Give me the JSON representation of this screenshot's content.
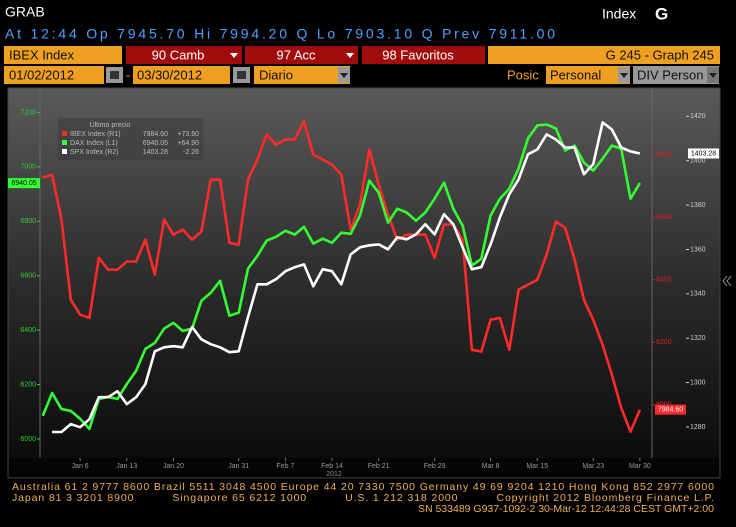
{
  "header": {
    "title": "GRAB",
    "screen": "Index",
    "screen_key": "G",
    "quote": "At 12:44 Op 7945.70   Hi 7994.20 Q Lo 7903.10 Q Prev 7911.00"
  },
  "toolbar": {
    "security": "IBEX Index",
    "buttons": [
      "90 Camb",
      "97 Acc",
      "98 Favoritos"
    ],
    "screen": "G 245 - Graph 245"
  },
  "controls": {
    "start": "01/02/2012",
    "separator": "-",
    "end": "03/30/2012",
    "period": "Diario",
    "position_label": "Posic",
    "position": "Personal",
    "currency": "DIV Person"
  },
  "footer": {
    "lines": [
      "Australia 61 2 9777 8600 Brazil 5511 3048 4500 Europe 44 20 7330 7500 Germany 49 69 9204 1210 Hong Kong 852 2977 6000",
      "Japan 81 3 3201 8900          Singapore 65 6212 1000          U.S. 1 212 318 2000          Copyright 2012 Bloomberg Finance L.P.",
      "SN 533489 G937-1092-2 30-Mar-12 12:44:28 CEST GMT+2:00"
    ]
  },
  "chart_data": {
    "type": "line",
    "legend_title": "Último precio",
    "year_label": "2012",
    "x": [
      0,
      1,
      2,
      3,
      4,
      5,
      6,
      7,
      8,
      9,
      10,
      11,
      12,
      13,
      14,
      15,
      16,
      17,
      18,
      19,
      20,
      21,
      22,
      23,
      24,
      25,
      26,
      27,
      28,
      29,
      30,
      31,
      32,
      33,
      34,
      35,
      36,
      37,
      38,
      39,
      40,
      41,
      42,
      43,
      44,
      45,
      46,
      47,
      48,
      49,
      50,
      51,
      52,
      53,
      54,
      55,
      56,
      57,
      58,
      59,
      60,
      61,
      62,
      63,
      64
    ],
    "xlim": [
      -0.3,
      65.3
    ],
    "xticks": [
      {
        "value": 4,
        "label": "Jan 6"
      },
      {
        "value": 9,
        "label": "Jan 13"
      },
      {
        "value": 14,
        "label": "Jan 20"
      },
      {
        "value": 21,
        "label": "Jan 31"
      },
      {
        "value": 26,
        "label": "Feb 7"
      },
      {
        "value": 31,
        "label": "Feb 14"
      },
      {
        "value": 36,
        "label": "Feb 21"
      },
      {
        "value": 42,
        "label": "Feb 29"
      },
      {
        "value": 48,
        "label": "Mar 8"
      },
      {
        "value": 53,
        "label": "Mar 15"
      },
      {
        "value": 59,
        "label": "Mar 23"
      },
      {
        "value": 64,
        "label": "Mar 30"
      }
    ],
    "ylim": [
      5930,
      7275
    ],
    "yticks": [
      6000,
      6200,
      6400,
      6600,
      6800,
      7000,
      7200
    ],
    "y2lim": [
      7830,
      9000
    ],
    "y2ticks": [
      8000,
      8200,
      8400,
      8600,
      8800
    ],
    "y3lim": [
      1266,
      1431
    ],
    "y3ticks": [
      1280,
      1300,
      1320,
      1340,
      1360,
      1380,
      1400,
      1420
    ],
    "series": [
      {
        "name": "IBEX Index  (R1)",
        "last": "7984.60",
        "change": "+73.60",
        "color": "#ff2a2a",
        "axis": "y2",
        "values": [
          8726,
          8736,
          8592,
          8336,
          8288,
          8278,
          8470,
          8432,
          8432,
          8458,
          8458,
          8528,
          8416,
          8592,
          8544,
          8560,
          8528,
          8554,
          8720,
          8720,
          8518,
          8512,
          8720,
          8784,
          8864,
          8832,
          8848,
          8848,
          8906,
          8800,
          8784,
          8768,
          8736,
          8560,
          8640,
          8816,
          8704,
          8608,
          8528,
          8544,
          8544,
          8544,
          8470,
          8576,
          8576,
          8528,
          8176,
          8170,
          8272,
          8278,
          8176,
          8368,
          8384,
          8400,
          8480,
          8586,
          8566,
          8464,
          8336,
          8272,
          8192,
          8096,
          7990,
          7914,
          7984.6
        ]
      },
      {
        "name": "DAX Index  (L1)",
        "last": "6940.05",
        "change": "+64.90",
        "color": "#33ff33",
        "axis": "y",
        "values": [
          6085,
          6169,
          6110,
          6103,
          6074,
          6037,
          6147,
          6155,
          6147,
          6202,
          6250,
          6331,
          6353,
          6405,
          6427,
          6397,
          6405,
          6508,
          6537,
          6581,
          6453,
          6464,
          6626,
          6673,
          6729,
          6743,
          6765,
          6751,
          6780,
          6718,
          6736,
          6721,
          6758,
          6754,
          6821,
          6949,
          6905,
          6795,
          6846,
          6832,
          6802,
          6832,
          6883,
          6942,
          6846,
          6784,
          6637,
          6662,
          6821,
          6883,
          6920,
          6994,
          7104,
          7152,
          7156,
          7141,
          7060,
          7078,
          7016,
          6986,
          7030,
          7078,
          7067,
          6883,
          6940.05
        ]
      },
      {
        "name": "SPX Index  (R2)",
        "last": "1403.28",
        "change": "-2.26",
        "color": "#ffffff",
        "axis": "y3",
        "values": [
          null,
          1277.7,
          1277.7,
          1281.3,
          1279.9,
          1283.5,
          1293.4,
          1293.4,
          1296.1,
          1290.3,
          1293.4,
          1299.3,
          1314.1,
          1315.9,
          1316.4,
          1315.9,
          1325,
          1319.5,
          1317.3,
          1315.9,
          1313.7,
          1314.1,
          1329.5,
          1344.3,
          1344.3,
          1346.6,
          1350.2,
          1352,
          1353.3,
          1343.4,
          1351.1,
          1350.2,
          1344.3,
          1357.8,
          1361,
          1361.9,
          1362.3,
          1360.1,
          1365.5,
          1364.6,
          1366.8,
          1371.4,
          1366.8,
          1375.9,
          1371.4,
          1361,
          1351.1,
          1352,
          1362.3,
          1374.5,
          1384.9,
          1391.6,
          1402.9,
          1405.1,
          1411.9,
          1409.6,
          1406,
          1406,
          1393.9,
          1398.4,
          1417.3,
          1414.1,
          1406,
          1404.2,
          1403.28
        ]
      }
    ]
  }
}
